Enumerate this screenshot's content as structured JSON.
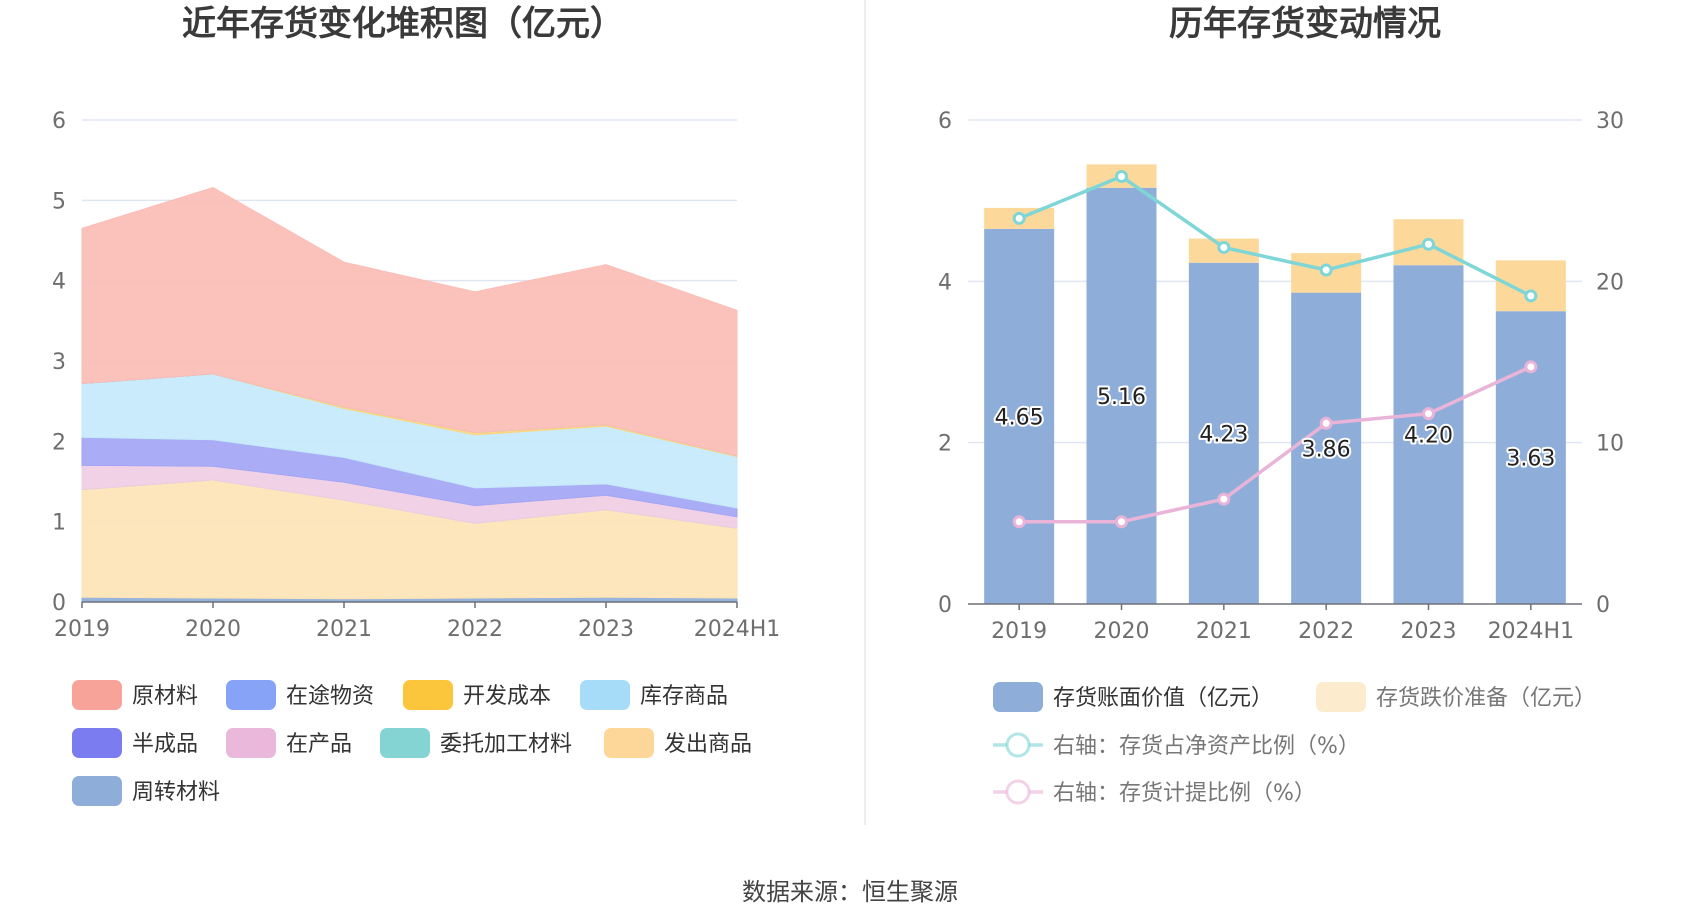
{
  "footer": {
    "source": "数据来源：恒生聚源"
  },
  "chart_data": [
    {
      "type": "area",
      "stacked": true,
      "title": "近年存货变化堆积图（亿元）",
      "categories": [
        "2019",
        "2020",
        "2021",
        "2022",
        "2023",
        "2024H1"
      ],
      "yticks": [
        "0",
        "1",
        "2",
        "3",
        "4",
        "5",
        "6"
      ],
      "ylim": [
        0,
        6
      ],
      "series": [
        {
          "name": "周转材料",
          "color": "#8eaed9",
          "values": [
            0.06,
            0.05,
            0.04,
            0.05,
            0.06,
            0.05
          ]
        },
        {
          "name": "发出商品",
          "color": "#fde3b6",
          "values": [
            1.34,
            1.47,
            1.23,
            0.93,
            1.09,
            0.87
          ]
        },
        {
          "name": "委托加工材料",
          "color": "#85d4d4",
          "values": [
            0.0,
            0.0,
            0.0,
            0.0,
            0.0,
            0.0
          ]
        },
        {
          "name": "在产品",
          "color": "#f0cde4",
          "values": [
            0.3,
            0.17,
            0.22,
            0.22,
            0.18,
            0.14
          ]
        },
        {
          "name": "半成品",
          "color": "#a3a5f5",
          "values": [
            0.35,
            0.33,
            0.31,
            0.22,
            0.14,
            0.11
          ]
        },
        {
          "name": "库存商品",
          "color": "#c4e9fb",
          "values": [
            0.67,
            0.82,
            0.61,
            0.66,
            0.72,
            0.64
          ]
        },
        {
          "name": "开发成本",
          "color": "#fdd57f",
          "values": [
            0.0,
            0.0,
            0.02,
            0.03,
            0.02,
            0.01
          ]
        },
        {
          "name": "在途物资",
          "color": "#8aa6fb",
          "values": [
            0.0,
            0.0,
            0.0,
            0.0,
            0.0,
            0.0
          ]
        },
        {
          "name": "原材料",
          "color": "#fbbdb6",
          "values": [
            1.93,
            2.32,
            1.8,
            1.75,
            1.99,
            1.81
          ]
        }
      ],
      "legend": [
        {
          "name": "原材料",
          "color": "#f7a39a"
        },
        {
          "name": "在途物资",
          "color": "#86a3f8"
        },
        {
          "name": "开发成本",
          "color": "#fcc63c"
        },
        {
          "name": "库存商品",
          "color": "#a6dcf7"
        },
        {
          "name": "半成品",
          "color": "#7b7cf0"
        },
        {
          "name": "在产品",
          "color": "#e9b8da"
        },
        {
          "name": "委托加工材料",
          "color": "#85d4d4"
        },
        {
          "name": "发出商品",
          "color": "#fdd79a"
        },
        {
          "name": "周转材料",
          "color": "#8eaed9"
        }
      ]
    },
    {
      "type": "bar",
      "stacked": true,
      "title": "历年存货变动情况",
      "categories": [
        "2019",
        "2020",
        "2021",
        "2022",
        "2023",
        "2024H1"
      ],
      "yticks_left": [
        "0",
        "2",
        "4",
        "6"
      ],
      "yticks_right": [
        "0",
        "10",
        "20",
        "30"
      ],
      "ylim_left": [
        0,
        6
      ],
      "ylim_right": [
        0,
        30
      ],
      "series": [
        {
          "name": "存货账面价值（亿元）",
          "color": "#8eaed9",
          "axis": "left",
          "values": [
            4.65,
            5.16,
            4.23,
            3.86,
            4.2,
            3.63
          ],
          "labels": [
            "4.65",
            "5.16",
            "4.23",
            "3.86",
            "4.20",
            "3.63"
          ]
        },
        {
          "name": "存货跌价准备（亿元）",
          "color": "#fcd89b",
          "axis": "left",
          "values": [
            0.26,
            0.29,
            0.3,
            0.49,
            0.57,
            0.63
          ]
        }
      ],
      "lines": [
        {
          "name": "右轴：存货占净资产比例（%）",
          "color": "#7fd6d6",
          "axis": "right",
          "values": [
            23.9,
            26.5,
            22.1,
            20.7,
            22.3,
            19.1
          ]
        },
        {
          "name": "右轴：存货计提比例（%）",
          "color": "#e9b4d8",
          "axis": "right",
          "values": [
            5.1,
            5.1,
            6.5,
            11.2,
            11.8,
            14.7
          ]
        }
      ]
    }
  ]
}
